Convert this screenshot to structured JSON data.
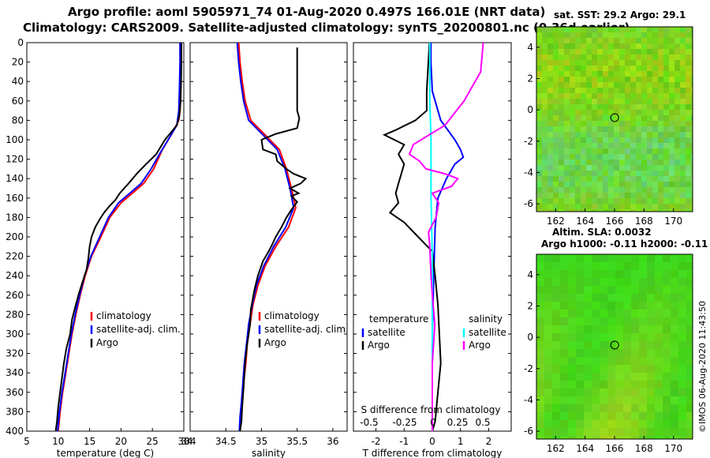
{
  "titles": {
    "line1": "Argo profile: aoml 5905971_74 01-Aug-2020 0.497S 166.01E (NRT data)",
    "line2": "Climatology: CARS2009. Satellite-adjusted climatology: synTS_20200801.nc (0.36d earlier)"
  },
  "watermark": "©IMOS 06-Aug-2020 11:43:50",
  "colors": {
    "climatology": "#ff0000",
    "satellite": "#0000ff",
    "argo": "#000000",
    "temp_diff_sat": "#0000ff",
    "sal_diff_sat": "#00ffff",
    "sal_diff_argo": "#ff00ff"
  },
  "chart_data": [
    {
      "type": "line",
      "name": "temperature-profile",
      "xlabel": "temperature (deg C)",
      "ylabel": "",
      "xlim": [
        5,
        30
      ],
      "ylim": [
        0,
        400
      ],
      "xticks": [
        5,
        10,
        15,
        20,
        25,
        30
      ],
      "yticks": [
        0,
        20,
        40,
        60,
        80,
        100,
        120,
        140,
        160,
        180,
        200,
        220,
        240,
        260,
        280,
        300,
        320,
        340,
        360,
        380,
        400
      ],
      "legend": [
        "climatology",
        "satellite-adj. clim.",
        "Argo"
      ],
      "series": [
        {
          "name": "climatology",
          "points": [
            [
              29.6,
              0
            ],
            [
              29.6,
              20
            ],
            [
              29.5,
              50
            ],
            [
              29.4,
              70
            ],
            [
              29.2,
              80
            ],
            [
              28.0,
              95
            ],
            [
              26.6,
              110
            ],
            [
              25.2,
              130
            ],
            [
              23.6,
              145
            ],
            [
              21.8,
              155
            ],
            [
              20.0,
              165
            ],
            [
              18.2,
              180
            ],
            [
              16.8,
              200
            ],
            [
              15.3,
              220
            ],
            [
              14.3,
              240
            ],
            [
              13.5,
              260
            ],
            [
              12.8,
              280
            ],
            [
              12.2,
              300
            ],
            [
              11.7,
              320
            ],
            [
              11.2,
              340
            ],
            [
              10.7,
              360
            ],
            [
              10.3,
              380
            ],
            [
              10.0,
              400
            ]
          ]
        },
        {
          "name": "satellite-adj. clim.",
          "points": [
            [
              29.4,
              0
            ],
            [
              29.4,
              20
            ],
            [
              29.3,
              50
            ],
            [
              29.2,
              70
            ],
            [
              28.9,
              85
            ],
            [
              27.5,
              100
            ],
            [
              26.1,
              115
            ],
            [
              24.8,
              130
            ],
            [
              23.2,
              145
            ],
            [
              21.4,
              155
            ],
            [
              19.6,
              165
            ],
            [
              18.0,
              180
            ],
            [
              16.6,
              200
            ],
            [
              15.2,
              220
            ],
            [
              14.2,
              240
            ],
            [
              13.4,
              260
            ],
            [
              12.7,
              280
            ],
            [
              12.1,
              300
            ],
            [
              11.6,
              320
            ],
            [
              11.1,
              340
            ],
            [
              10.6,
              360
            ],
            [
              10.2,
              380
            ],
            [
              9.9,
              400
            ]
          ]
        },
        {
          "name": "Argo",
          "points": [
            [
              29.6,
              0
            ],
            [
              29.6,
              30
            ],
            [
              29.5,
              60
            ],
            [
              29.3,
              75
            ],
            [
              28.9,
              85
            ],
            [
              27.0,
              100
            ],
            [
              25.6,
              115
            ],
            [
              24.0,
              125
            ],
            [
              22.5,
              135
            ],
            [
              21.2,
              145
            ],
            [
              20.5,
              150
            ],
            [
              19.8,
              155
            ],
            [
              19.1,
              162
            ],
            [
              18.2,
              168
            ],
            [
              17.3,
              175
            ],
            [
              16.6,
              182
            ],
            [
              15.9,
              190
            ],
            [
              15.3,
              200
            ],
            [
              15.0,
              210
            ],
            [
              14.8,
              222
            ],
            [
              14.5,
              234
            ],
            [
              13.9,
              246
            ],
            [
              13.3,
              258
            ],
            [
              12.8,
              270
            ],
            [
              12.2,
              285
            ],
            [
              11.9,
              300
            ],
            [
              11.3,
              315
            ],
            [
              10.9,
              330
            ],
            [
              10.6,
              345
            ],
            [
              10.3,
              360
            ],
            [
              10.0,
              375
            ],
            [
              9.8,
              390
            ],
            [
              9.6,
              400
            ]
          ]
        }
      ]
    },
    {
      "type": "line",
      "name": "salinity-profile",
      "xlabel": "salinity",
      "ylabel": "",
      "xlim": [
        34,
        36.2
      ],
      "xticks": [
        34,
        34.5,
        35,
        35.5,
        36
      ],
      "legend": [
        "climatology",
        "satellite-adj. clim.",
        "Argo"
      ],
      "series": [
        {
          "name": "climatology",
          "points": [
            [
              34.68,
              0
            ],
            [
              34.7,
              20
            ],
            [
              34.73,
              40
            ],
            [
              34.77,
              60
            ],
            [
              34.85,
              80
            ],
            [
              35.05,
              95
            ],
            [
              35.25,
              110
            ],
            [
              35.35,
              130
            ],
            [
              35.42,
              150
            ],
            [
              35.48,
              170
            ],
            [
              35.38,
              190
            ],
            [
              35.2,
              210
            ],
            [
              35.05,
              230
            ],
            [
              34.95,
              250
            ],
            [
              34.88,
              270
            ],
            [
              34.84,
              290
            ],
            [
              34.8,
              310
            ],
            [
              34.78,
              330
            ],
            [
              34.75,
              350
            ],
            [
              34.73,
              370
            ],
            [
              34.71,
              385
            ],
            [
              34.7,
              400
            ]
          ]
        },
        {
          "name": "satellite-adj. clim.",
          "points": [
            [
              34.66,
              0
            ],
            [
              34.68,
              20
            ],
            [
              34.71,
              40
            ],
            [
              34.75,
              60
            ],
            [
              34.82,
              80
            ],
            [
              35.02,
              95
            ],
            [
              35.22,
              110
            ],
            [
              35.33,
              130
            ],
            [
              35.4,
              150
            ],
            [
              35.45,
              170
            ],
            [
              35.34,
              190
            ],
            [
              35.17,
              210
            ],
            [
              35.03,
              230
            ],
            [
              34.93,
              250
            ],
            [
              34.87,
              270
            ],
            [
              34.82,
              290
            ],
            [
              34.79,
              310
            ],
            [
              34.76,
              330
            ],
            [
              34.74,
              350
            ],
            [
              34.72,
              370
            ],
            [
              34.7,
              385
            ],
            [
              34.69,
              400
            ]
          ]
        },
        {
          "name": "Argo",
          "points": [
            [
              35.5,
              5
            ],
            [
              35.5,
              40
            ],
            [
              35.5,
              70
            ],
            [
              35.53,
              78
            ],
            [
              35.5,
              88
            ],
            [
              35.2,
              94
            ],
            [
              35.0,
              100
            ],
            [
              35.02,
              110
            ],
            [
              35.2,
              115
            ],
            [
              35.22,
              122
            ],
            [
              35.35,
              130
            ],
            [
              35.45,
              135
            ],
            [
              35.62,
              140
            ],
            [
              35.55,
              145
            ],
            [
              35.4,
              150
            ],
            [
              35.52,
              155
            ],
            [
              35.42,
              158
            ],
            [
              35.5,
              164
            ],
            [
              35.42,
              172
            ],
            [
              35.35,
              180
            ],
            [
              35.28,
              190
            ],
            [
              35.2,
              200
            ],
            [
              35.15,
              208
            ],
            [
              35.1,
              215
            ],
            [
              35.02,
              225
            ],
            [
              34.95,
              240
            ],
            [
              34.9,
              255
            ],
            [
              34.85,
              275
            ],
            [
              34.84,
              290
            ],
            [
              34.8,
              310
            ],
            [
              34.77,
              330
            ],
            [
              34.75,
              355
            ],
            [
              34.73,
              375
            ],
            [
              34.72,
              390
            ],
            [
              34.7,
              400
            ]
          ]
        }
      ]
    },
    {
      "type": "line",
      "name": "difference-profile",
      "xlabel": "T difference from climatology",
      "xlim": [
        -2.8,
        2.8
      ],
      "xticks": [
        -2,
        -1,
        0,
        1,
        2
      ],
      "top_xlabel": "S difference from climatology",
      "top_xticks": [
        "-0.5",
        "-0.25",
        "0",
        "0.25",
        "0.5"
      ],
      "legend_temperature": {
        "title": "temperature",
        "items": [
          "satellite",
          "Argo"
        ]
      },
      "legend_salinity": {
        "title": "salinity",
        "items": [
          "satellite",
          "Argo"
        ]
      },
      "series": [
        {
          "name": "temperature satellite",
          "points": [
            [
              -0.05,
              0
            ],
            [
              -0.05,
              20
            ],
            [
              0.0,
              50
            ],
            [
              0.3,
              80
            ],
            [
              0.8,
              100
            ],
            [
              1.0,
              110
            ],
            [
              1.1,
              118
            ],
            [
              0.8,
              125
            ],
            [
              0.5,
              140
            ],
            [
              0.2,
              160
            ],
            [
              0.1,
              190
            ],
            [
              0.05,
              240
            ],
            [
              0.0,
              300
            ],
            [
              0.0,
              360
            ],
            [
              0.0,
              400
            ]
          ]
        },
        {
          "name": "temperature Argo",
          "points": [
            [
              -0.1,
              0
            ],
            [
              -0.2,
              50
            ],
            [
              -0.2,
              70
            ],
            [
              -0.6,
              80
            ],
            [
              -1.3,
              90
            ],
            [
              -1.7,
              95
            ],
            [
              -1.0,
              105
            ],
            [
              -1.2,
              115
            ],
            [
              -1.0,
              125
            ],
            [
              -1.1,
              135
            ],
            [
              -1.2,
              145
            ],
            [
              -1.3,
              155
            ],
            [
              -1.2,
              165
            ],
            [
              -1.5,
              175
            ],
            [
              -1.0,
              185
            ],
            [
              -0.5,
              200
            ],
            [
              0.0,
              215
            ],
            [
              0.1,
              240
            ],
            [
              0.2,
              270
            ],
            [
              0.25,
              300
            ],
            [
              0.3,
              330
            ],
            [
              0.2,
              360
            ],
            [
              0.1,
              390
            ],
            [
              0.0,
              400
            ]
          ]
        },
        {
          "name": "salinity satellite",
          "points": [
            [
              -0.02,
              0
            ],
            [
              -0.02,
              60
            ],
            [
              -0.01,
              100
            ],
            [
              -0.01,
              160
            ],
            [
              0.0,
              220
            ],
            [
              0.0,
              300
            ],
            [
              0.0,
              400
            ]
          ]
        },
        {
          "name": "salinity Argo",
          "points": [
            [
              0.4,
              0
            ],
            [
              0.38,
              30
            ],
            [
              0.25,
              60
            ],
            [
              0.1,
              85
            ],
            [
              -0.05,
              97
            ],
            [
              -0.15,
              105
            ],
            [
              -0.18,
              115
            ],
            [
              -0.1,
              122
            ],
            [
              -0.05,
              130
            ],
            [
              0.1,
              135
            ],
            [
              0.2,
              140
            ],
            [
              0.15,
              148
            ],
            [
              0.0,
              155
            ],
            [
              0.05,
              165
            ],
            [
              0.03,
              180
            ],
            [
              -0.03,
              195
            ],
            [
              -0.02,
              210
            ],
            [
              -0.01,
              240
            ],
            [
              0.0,
              260
            ],
            [
              0.02,
              290
            ],
            [
              0.0,
              330
            ],
            [
              0.0,
              360
            ],
            [
              0.0,
              400
            ]
          ]
        }
      ]
    },
    {
      "type": "heatmap",
      "name": "sst-map",
      "title": "sat. SST: 29.2 Argo: 29.1",
      "xlim": [
        160.7,
        171.3
      ],
      "ylim": [
        -6.5,
        5.3
      ],
      "xticks": [
        162,
        164,
        166,
        168,
        170
      ],
      "yticks": [
        4,
        2,
        0,
        -2,
        -4,
        -6
      ],
      "marker": {
        "lon": 166.01,
        "lat": -0.497
      }
    },
    {
      "type": "heatmap",
      "name": "sla-map",
      "title": "Altim. SLA: 0.0032",
      "title2": "Argo h1000: -0.11 h2000: -0.11",
      "xlim": [
        160.7,
        171.3
      ],
      "ylim": [
        -6.5,
        5.3
      ],
      "xticks": [
        162,
        164,
        166,
        168,
        170
      ],
      "yticks": [
        4,
        2,
        0,
        -2,
        -4,
        -6
      ],
      "marker": {
        "lon": 166.01,
        "lat": -0.497
      }
    }
  ]
}
